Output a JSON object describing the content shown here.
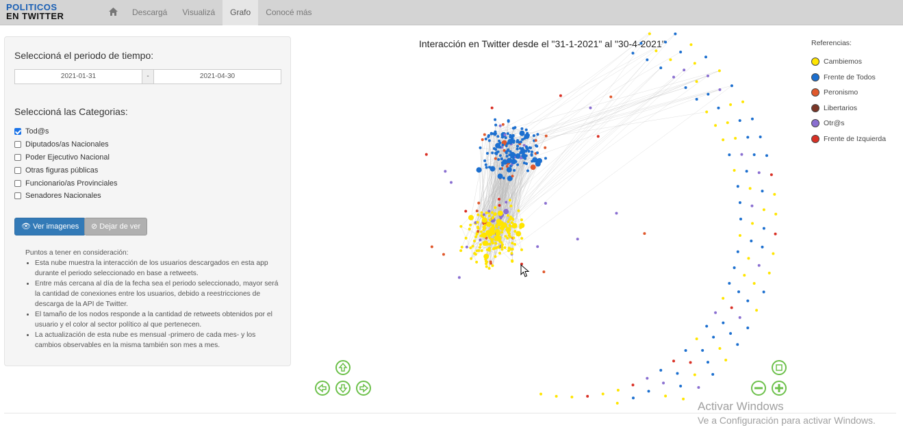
{
  "logo": {
    "line1": "POLITICOS",
    "line2": "EN TWITTER"
  },
  "nav": {
    "home_icon": "home-icon",
    "items": [
      {
        "label": "Descargá"
      },
      {
        "label": "Visualizá"
      },
      {
        "label": "Grafo",
        "active": true
      },
      {
        "label": "Conocé más"
      }
    ]
  },
  "sidebar": {
    "period_title": "Seleccioná el periodo de tiempo:",
    "date_start": "2021-01-31",
    "date_sep": "-",
    "date_end": "2021-04-30",
    "categories_title": "Seleccioná las Categorias:",
    "categories": [
      {
        "label": "Tod@s",
        "checked": true
      },
      {
        "label": "Diputados/as Nacionales",
        "checked": false
      },
      {
        "label": "Poder Ejecutivo Nacional",
        "checked": false
      },
      {
        "label": "Otras figuras públicas",
        "checked": false
      },
      {
        "label": "Funcionario/as Provinciales",
        "checked": false
      },
      {
        "label": "Senadores Nacionales",
        "checked": false
      }
    ],
    "btn_view": "Ver imagenes",
    "btn_hide": "Dejar de ver",
    "notes_title": "Puntos a tener en consideración:",
    "notes": [
      "Esta nube muestra la interacción de los usuarios descargados en esta app durante el periodo seleccionado en base a retweets.",
      "Entre más cercana al día de la fecha sea el periodo seleccionado, mayor será la cantidad de conexiones entre los usuarios, debido a reestricciones de descarga de la API de Twitter.",
      "El tamaño de los nodos responde a la cantidad de retweets obtenidos por el usuario y el color al sector político al que pertenecen.",
      "La actualización de esta nube es mensual -primero de cada mes- y los cambios observables en la misma también son mes a mes."
    ]
  },
  "graph": {
    "title": "Interacción en Twitter desde el \"31-1-2021\" al \"30-4-2021\"",
    "legend_title": "Referencias:",
    "legend": [
      {
        "label": "Cambiemos",
        "color": "#ffe500"
      },
      {
        "label": "Frente de Todos",
        "color": "#1c6fcf"
      },
      {
        "label": "Peronismo",
        "color": "#e0582c"
      },
      {
        "label": "Libertarios",
        "color": "#7a3526"
      },
      {
        "label": "Otr@s",
        "color": "#8a6fd1"
      },
      {
        "label": "Frente de Izquierda",
        "color": "#d93025"
      }
    ],
    "controls": [
      "arrow-up-icon",
      "arrow-left-icon",
      "arrow-down-icon",
      "arrow-right-icon",
      "zoom-fit-icon",
      "zoom-out-icon",
      "zoom-in-icon"
    ]
  },
  "watermark": {
    "line1": "Activar Windows",
    "line2": "Ve a Configuración para activar Windows."
  }
}
